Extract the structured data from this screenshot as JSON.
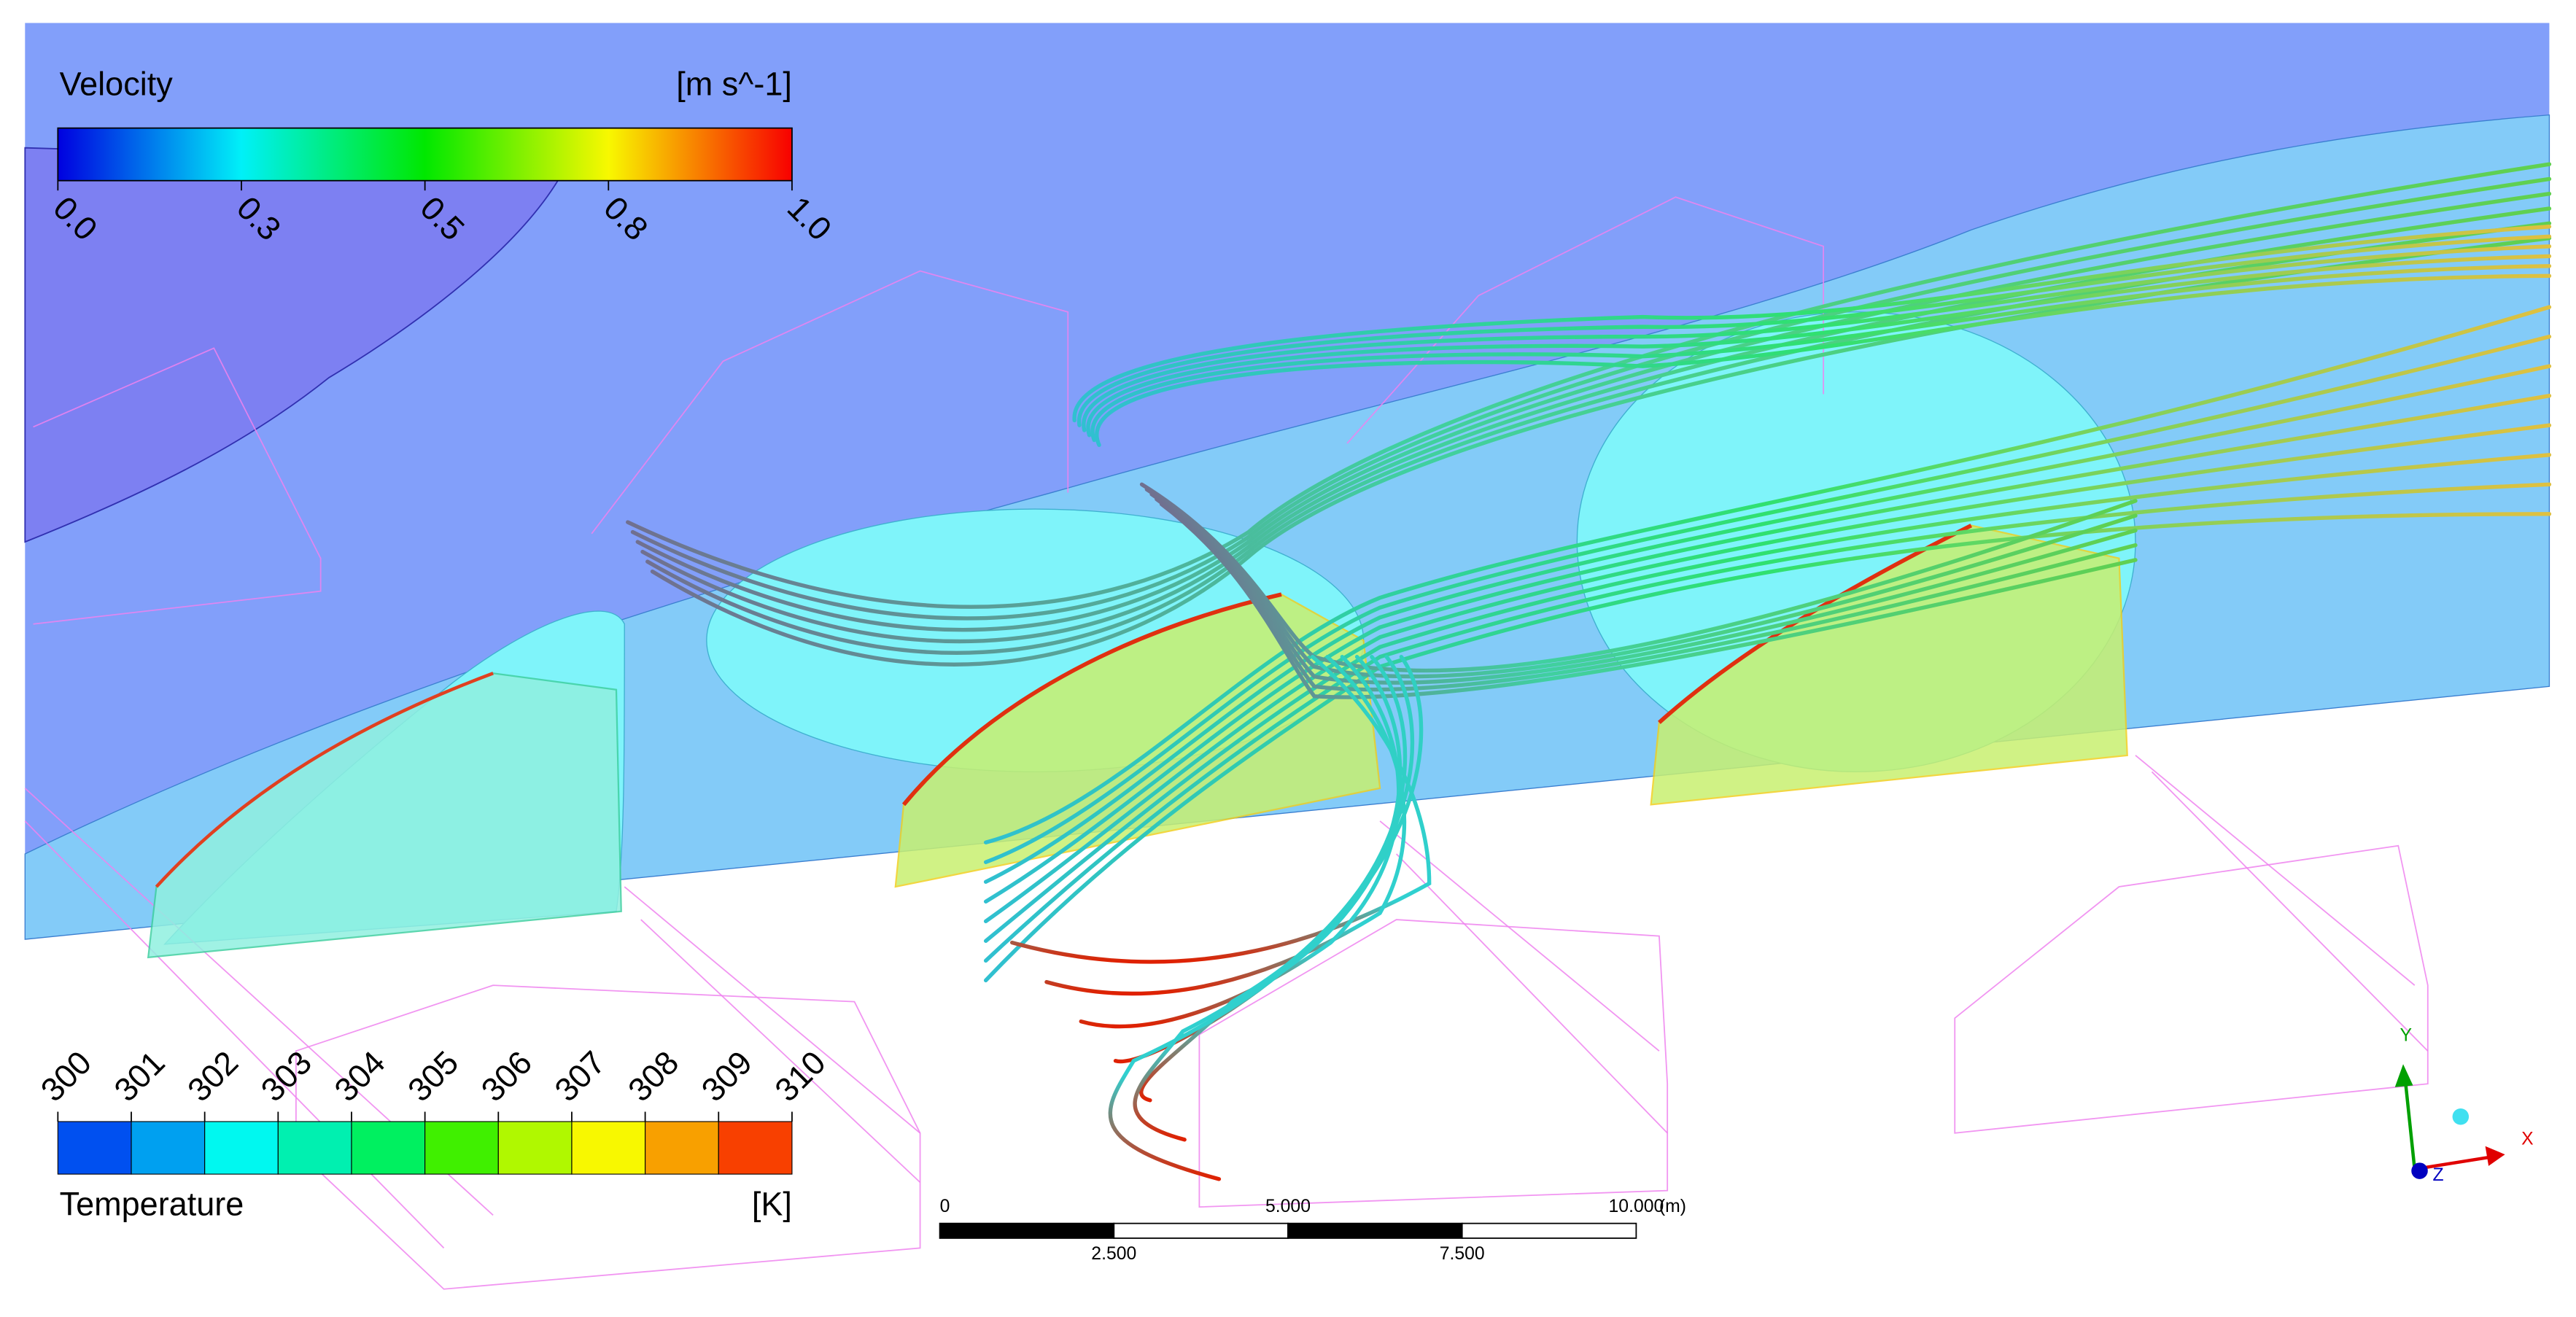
{
  "velocity_legend": {
    "title": "Velocity",
    "unit": "[m s^-1]",
    "ticks": [
      "0.0",
      "0.3",
      "0.5",
      "0.8",
      "1.0"
    ]
  },
  "temperature_legend": {
    "title": "Temperature",
    "unit": "[K]",
    "ticks": [
      "300",
      "301",
      "302",
      "303",
      "304",
      "305",
      "306",
      "307",
      "308",
      "309",
      "310"
    ]
  },
  "scale_bar": {
    "top_labels": [
      "0",
      "5.000",
      "10.000"
    ],
    "unit": "(m)",
    "bottom_labels": [
      "2.500",
      "7.500"
    ]
  },
  "axes": {
    "x": "X",
    "y": "Y",
    "z": "Z"
  }
}
